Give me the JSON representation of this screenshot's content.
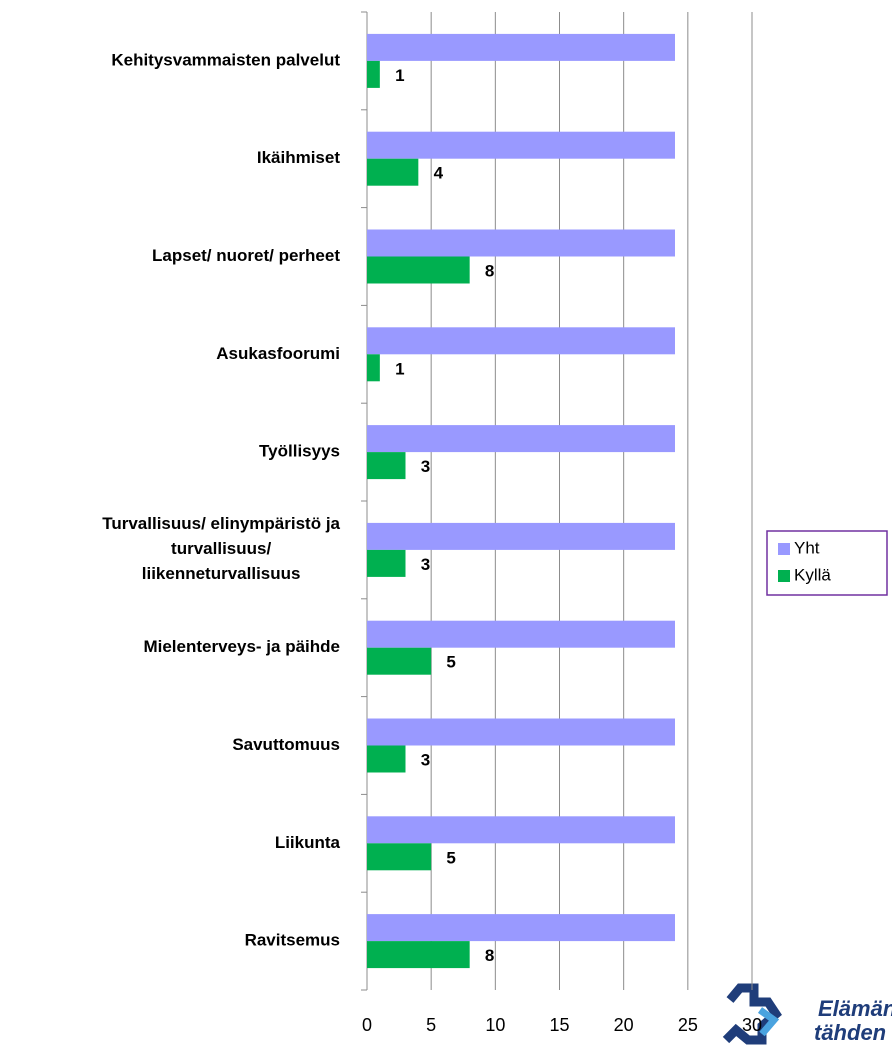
{
  "chart_data": {
    "type": "hbar",
    "categories": [
      "Kehitysvammaisten palvelut",
      "Ikäihmiset",
      "Lapset/ nuoret/ perheet",
      "Asukasfoorumi",
      "Työllisyys",
      "Turvallisuus/ elinympäristö ja\nturvallisuus/\nliikenneturvallisuus",
      "Mielenterveys- ja päihde",
      "Savuttomuus",
      "Liikunta",
      "Ravitsemus"
    ],
    "series": [
      {
        "name": "Yht",
        "color": "#9999ff",
        "values": [
          24,
          24,
          24,
          24,
          24,
          24,
          24,
          24,
          24,
          24
        ]
      },
      {
        "name": "Kyllä",
        "color": "#00b050",
        "values": [
          1,
          4,
          8,
          1,
          3,
          3,
          5,
          3,
          5,
          8
        ],
        "show_labels": true
      }
    ],
    "xlim": [
      0,
      30
    ],
    "xticks": [
      0,
      5,
      10,
      15,
      20,
      25,
      30
    ],
    "grid": true,
    "legend": "right",
    "logo": [
      "Elämän",
      "tähden"
    ]
  }
}
